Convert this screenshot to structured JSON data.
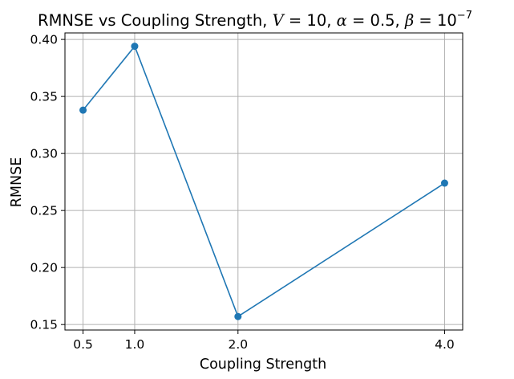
{
  "chart_data": {
    "type": "line",
    "title": {
      "prefix": "RMNSE vs Coupling Strength, ",
      "v_sym": "V",
      "v_eq": " = 10, ",
      "alpha_sym": "α",
      "alpha_eq": " = 0.5, ",
      "beta_sym": "β",
      "beta_eq": " = 10",
      "beta_exp": "−7"
    },
    "xlabel": "Coupling Strength",
    "ylabel": "RMNSE",
    "x": [
      0.5,
      1.0,
      2.0,
      4.0
    ],
    "series": [
      {
        "values": [
          0.338,
          0.394,
          0.157,
          0.274
        ],
        "color": "#1f77b4",
        "marker": "circle"
      }
    ],
    "xticks": [
      0.5,
      1.0,
      2.0,
      4.0
    ],
    "xtick_labels": [
      "0.5",
      "1.0",
      "2.0",
      "4.0"
    ],
    "yticks": [
      0.15,
      0.2,
      0.25,
      0.3,
      0.35,
      0.4
    ],
    "ytick_labels": [
      "0.15",
      "0.20",
      "0.25",
      "0.30",
      "0.35",
      "0.40"
    ],
    "xlim": [
      0.325,
      4.175
    ],
    "ylim": [
      0.1452,
      0.4057
    ],
    "grid": true
  }
}
